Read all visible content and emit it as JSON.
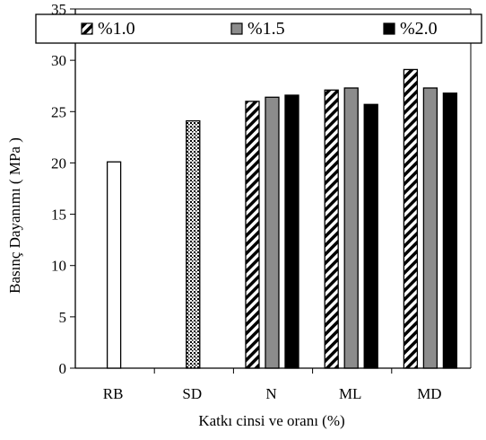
{
  "chart_data": {
    "type": "bar",
    "xlabel": "Katkı cinsi ve oranı (%)",
    "ylabel": "Basınç Dayanımı ( MPa )",
    "ylim": [
      0,
      35
    ],
    "yticks": [
      0,
      5,
      10,
      15,
      20,
      25,
      30,
      35
    ],
    "grid": false,
    "legend_position": "top",
    "single_bars": [
      {
        "category": "RB",
        "value": 20.1,
        "pattern": "white"
      },
      {
        "category": "SD",
        "value": 24.1,
        "pattern": "dots"
      }
    ],
    "categories": [
      "N",
      "ML",
      "MD"
    ],
    "series": [
      {
        "name": "%1.0",
        "values": [
          26.0,
          27.1,
          29.1
        ],
        "pattern": "diagonal-hatch"
      },
      {
        "name": "%1.5",
        "values": [
          26.4,
          27.3,
          27.3
        ],
        "pattern": "gray"
      },
      {
        "name": "%2.0",
        "values": [
          26.6,
          25.7,
          26.8
        ],
        "pattern": "black"
      }
    ],
    "all_categories": [
      "RB",
      "SD",
      "N",
      "ML",
      "MD"
    ]
  },
  "colors": {
    "gray": "#8c8c8c",
    "black": "#000000",
    "white": "#ffffff"
  }
}
